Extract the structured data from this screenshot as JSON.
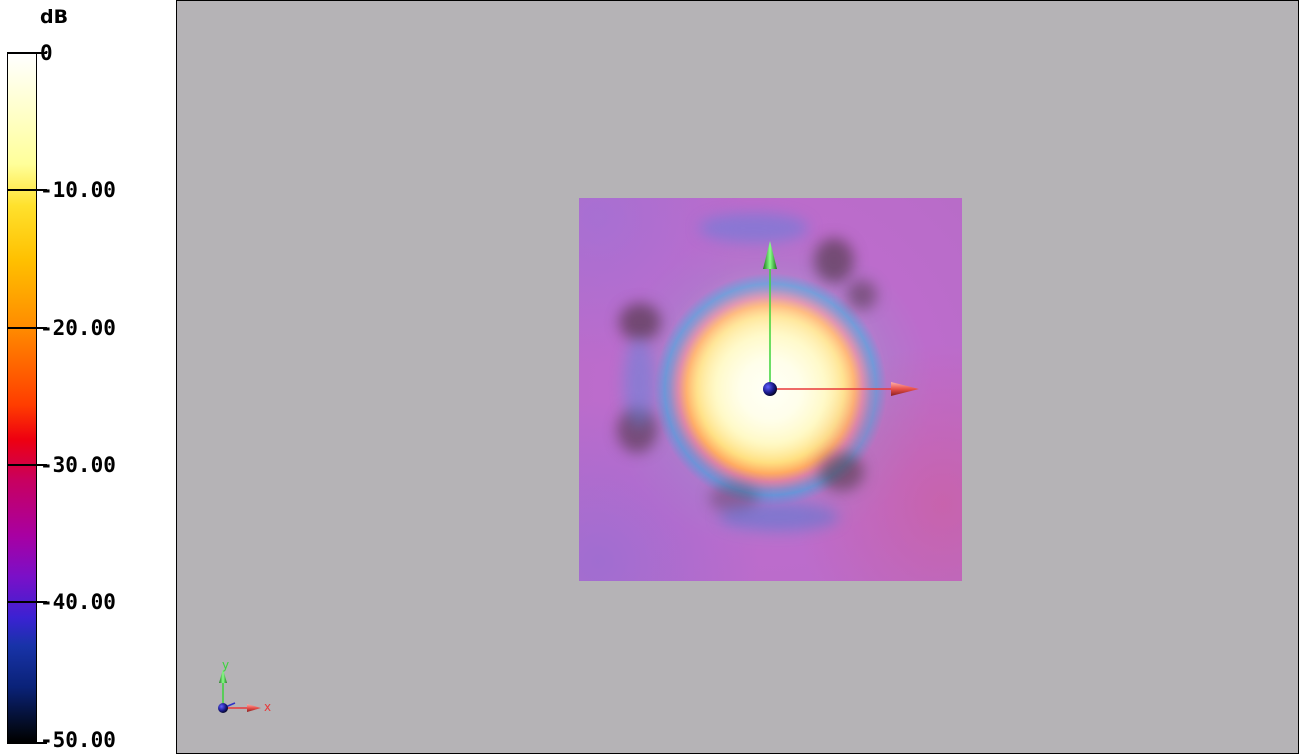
{
  "colorbar": {
    "unit": "dB",
    "ticks": [
      {
        "label": "0",
        "value": 0
      },
      {
        "label": "-10.00",
        "value": -10
      },
      {
        "label": "-20.00",
        "value": -20
      },
      {
        "label": "-30.00",
        "value": -30
      },
      {
        "label": "-40.00",
        "value": -40
      },
      {
        "label": "-50.00",
        "value": -50
      }
    ],
    "range": [
      -50,
      0
    ],
    "colormap": [
      "#000000",
      "#0a2278",
      "#3a22d2",
      "#a800a2",
      "#ee0010",
      "#ff8a00",
      "#ffe12d",
      "#ffff9a",
      "#ffffff"
    ]
  },
  "viewport": {
    "background": "#b5b3b6",
    "axes": {
      "x_color": "#e8393a",
      "y_color": "#3ad43a",
      "z_color": "#3030c8"
    },
    "orientation_triad": {
      "x_label": "x",
      "y_label": "y",
      "z_label": "z"
    }
  }
}
